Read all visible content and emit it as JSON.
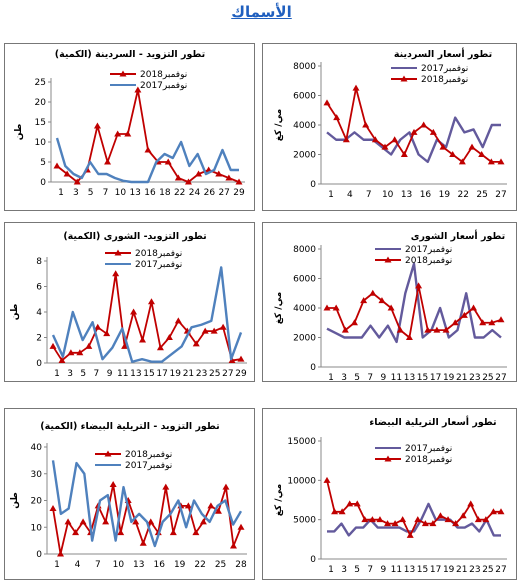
{
  "page": {
    "title": "الأسماك"
  },
  "colors": {
    "nov2018": "#c00000",
    "nov2017_blue": "#4f81bd",
    "nov2017_purple": "#635a9c",
    "axis": "#888888"
  },
  "chart_data": [
    {
      "id": "sardine-supply",
      "type": "line",
      "title": "تطور التزويد - السردينة (الكمية)",
      "ylabel": "طن",
      "ylim": [
        0,
        25
      ],
      "yticks": [
        0,
        5,
        10,
        15,
        20,
        25
      ],
      "xtick_labels": [
        "1",
        "3",
        "5",
        "7",
        "10",
        "13",
        "16",
        "18",
        "22",
        "24",
        "26",
        "27",
        "29"
      ],
      "legend": [
        "نوفمبر2018",
        "نوفمبر2017"
      ],
      "series": [
        {
          "name": "نوفمبر2018",
          "color": "nov2018",
          "marker": true,
          "values": [
            4,
            2,
            0,
            3,
            14,
            5,
            12,
            12,
            23,
            8,
            5,
            5,
            1,
            0,
            2,
            3,
            2,
            1,
            0
          ]
        },
        {
          "name": "نوفمبر2017",
          "color": "nov2017_blue",
          "marker": false,
          "values": [
            11,
            4,
            2,
            1,
            5,
            2,
            2,
            1,
            0.3,
            0,
            0,
            0,
            5,
            7,
            6,
            10,
            4,
            7,
            2,
            3,
            8,
            3,
            3
          ]
        }
      ]
    },
    {
      "id": "sardine-price",
      "type": "line",
      "title": "تطور أسعار السردينة",
      "ylabel": "مي/ كغ",
      "ylim": [
        0,
        8000
      ],
      "yticks": [
        0,
        2000,
        4000,
        6000,
        8000
      ],
      "xtick_labels": [
        "1",
        "4",
        "7",
        "10",
        "13",
        "16",
        "19",
        "22",
        "25",
        "27"
      ],
      "legend": [
        "نوفمبر2017",
        "نوفمبر2018"
      ],
      "series": [
        {
          "name": "نوفمبر2017",
          "color": "nov2017_purple",
          "marker": false,
          "values": [
            3500,
            3000,
            3000,
            3500,
            3000,
            3000,
            2500,
            2000,
            3000,
            3500,
            2000,
            1500,
            3000,
            2500,
            4500,
            3500,
            3700,
            2500,
            4000,
            4000
          ]
        },
        {
          "name": "نوفمبر2018",
          "color": "nov2018",
          "marker": true,
          "values": [
            5500,
            4500,
            3000,
            6500,
            4000,
            3000,
            2500,
            3000,
            2000,
            3500,
            4000,
            3500,
            2500,
            2000,
            1500,
            2500,
            2000,
            1500,
            1500
          ]
        }
      ]
    },
    {
      "id": "shoury-supply",
      "type": "line",
      "title": "تطور التزويد- الشورى (الكمية)",
      "ylabel": "طن",
      "ylim": [
        0,
        8
      ],
      "yticks": [
        0,
        2,
        4,
        6,
        8
      ],
      "xtick_labels": [
        "1",
        "3",
        "5",
        "7",
        "9",
        "11",
        "13",
        "15",
        "17",
        "19",
        "21",
        "23",
        "25",
        "27",
        "29"
      ],
      "legend": [
        "نوفمبر2018",
        "نوفمبر2017"
      ],
      "series": [
        {
          "name": "نوفمبر2018",
          "color": "nov2018",
          "marker": true,
          "values": [
            1.3,
            0.2,
            0.8,
            0.8,
            1.3,
            2.8,
            2.3,
            7,
            1.3,
            4,
            1.8,
            4.8,
            1.2,
            2,
            3.3,
            2.5,
            1.5,
            2.5,
            2.5,
            2.8,
            0.2,
            0.3
          ]
        },
        {
          "name": "نوفمبر2017",
          "color": "nov2017_blue",
          "marker": false,
          "values": [
            2.2,
            0.5,
            4,
            1.8,
            3.2,
            0.3,
            1.2,
            2.7,
            0.1,
            0.3,
            0.1,
            0.1,
            0.7,
            1.3,
            2.8,
            3,
            3.3,
            7.5,
            0.3,
            2.4
          ]
        }
      ]
    },
    {
      "id": "shoury-price",
      "type": "line",
      "title": "تطور أسعار الشورى",
      "ylabel": "مي/ كغ",
      "ylim": [
        0,
        8000
      ],
      "yticks": [
        0,
        2000,
        4000,
        6000,
        8000
      ],
      "xtick_labels": [
        "1",
        "3",
        "5",
        "7",
        "9",
        "11",
        "13",
        "15",
        "17",
        "19",
        "21",
        "23",
        "25",
        "27"
      ],
      "legend": [
        "نوفمبر2017",
        "نوفمبر2018"
      ],
      "series": [
        {
          "name": "نوفمبر2017",
          "color": "nov2017_purple",
          "marker": false,
          "values": [
            2600,
            2300,
            2000,
            2000,
            2000,
            2800,
            2000,
            2800,
            1700,
            5000,
            7000,
            2000,
            2500,
            4000,
            2000,
            2500,
            5000,
            2000,
            2000,
            2500,
            2000
          ]
        },
        {
          "name": "نوفمبر2018",
          "color": "nov2018",
          "marker": true,
          "values": [
            4000,
            4000,
            2500,
            3000,
            4500,
            5000,
            4500,
            4000,
            2500,
            2000,
            5500,
            2500,
            2500,
            2500,
            3000,
            3500,
            4000,
            3000,
            3000,
            3200
          ]
        }
      ]
    },
    {
      "id": "baida-supply",
      "type": "line",
      "title": "تطور التزويد - التريلية البيضاء (الكمية)",
      "ylabel": "طن",
      "ylim": [
        0,
        40
      ],
      "yticks": [
        0,
        10,
        20,
        30,
        40
      ],
      "xtick_labels": [
        "1",
        "4",
        "7",
        "10",
        "13",
        "16",
        "19",
        "22",
        "25",
        "28"
      ],
      "legend": [
        "نوفمبر2018",
        "نوفمبر2017"
      ],
      "series": [
        {
          "name": "نوفمبر2018",
          "color": "nov2018",
          "marker": true,
          "values": [
            17,
            0,
            12,
            8,
            12,
            8,
            18,
            12,
            26,
            8,
            20,
            12,
            4,
            12,
            8,
            25,
            8,
            18,
            18,
            8,
            12,
            18,
            16,
            25,
            3,
            10
          ]
        },
        {
          "name": "نوفمبر2017",
          "color": "nov2017_blue",
          "marker": false,
          "values": [
            35,
            15,
            17,
            34,
            30,
            5,
            20,
            22,
            5,
            25,
            12,
            15,
            12,
            3,
            12,
            15,
            20,
            10,
            20,
            15,
            12,
            18,
            20,
            11,
            16
          ]
        }
      ]
    },
    {
      "id": "baida-price",
      "type": "line",
      "title": "تطور أسعار التريلية البيضاء",
      "ylabel": "مي/ كغ",
      "ylim": [
        0,
        15000
      ],
      "yticks": [
        0,
        5000,
        10000,
        15000
      ],
      "xtick_labels": [
        "1",
        "3",
        "5",
        "7",
        "9",
        "11",
        "13",
        "15",
        "17",
        "19",
        "21",
        "23",
        "25",
        "27"
      ],
      "legend": [
        "نوفمبر2017",
        "نوفمبر2018"
      ],
      "series": [
        {
          "name": "نوفمبر2017",
          "color": "nov2017_purple",
          "marker": false,
          "values": [
            3500,
            3500,
            4500,
            3000,
            4000,
            4000,
            5000,
            4000,
            4000,
            4000,
            4000,
            3500,
            3500,
            5000,
            7000,
            5000,
            5000,
            5000,
            4000,
            4000,
            4500,
            3500,
            5000,
            3000,
            3000
          ]
        },
        {
          "name": "نوفمبر2018",
          "color": "nov2018",
          "marker": true,
          "values": [
            10000,
            6000,
            6000,
            7000,
            7000,
            5000,
            5000,
            5000,
            4500,
            4500,
            5000,
            3000,
            5000,
            4500,
            4500,
            5500,
            5000,
            4500,
            5500,
            7000,
            5000,
            5000,
            6000,
            6000
          ]
        }
      ]
    }
  ]
}
